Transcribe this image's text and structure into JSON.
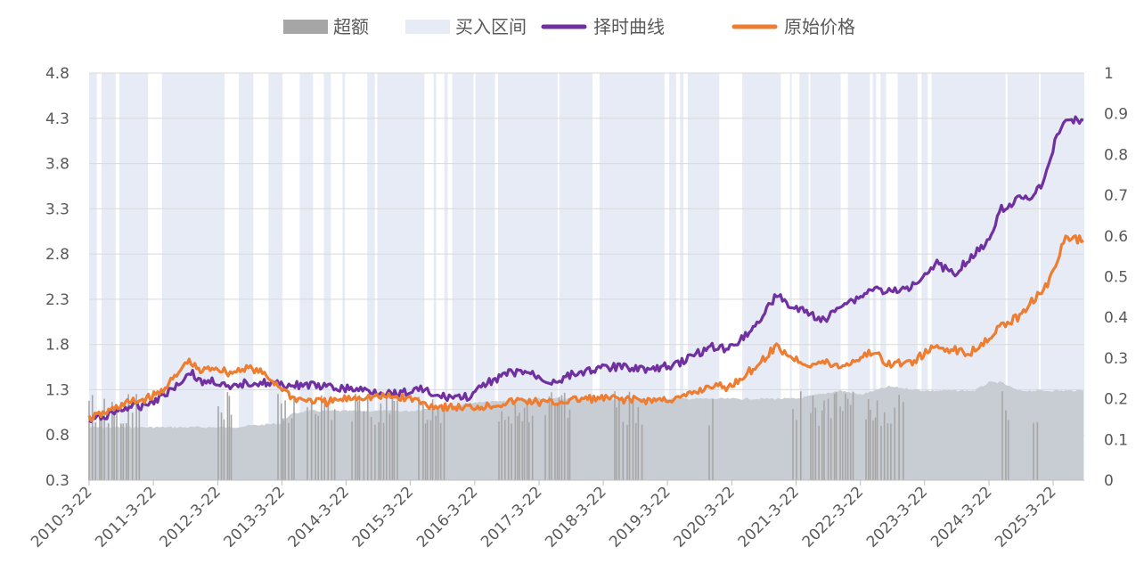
{
  "chart_data": {
    "type": "line",
    "title": "",
    "legend": {
      "position": "top",
      "entries": [
        {
          "label": "超额",
          "color": "#a6a6a6",
          "kind": "area"
        },
        {
          "label": "买入区间",
          "color": "#e6ebf6",
          "kind": "band"
        },
        {
          "label": "择时曲线",
          "color": "#7030a0",
          "kind": "line"
        },
        {
          "label": "原始价格",
          "color": "#ed7d31",
          "kind": "line"
        }
      ]
    },
    "colors": {
      "timing": "#7030a0",
      "price": "#ed7d31",
      "excess": "#a6a6a6",
      "excess_light": "#c8ccd3",
      "buy_band": "#e6ebf6",
      "grid": "#d9d9d9",
      "axis": "#bfbfbf"
    },
    "x_axis": {
      "type": "date",
      "range": [
        "2010-03-22",
        "2025-09-15"
      ],
      "tick_labels": [
        "2010-3-22",
        "2011-3-22",
        "2012-3-22",
        "2013-3-22",
        "2014-3-22",
        "2015-3-22",
        "2016-3-22",
        "2017-3-22",
        "2018-3-22",
        "2019-3-22",
        "2020-3-22",
        "2021-3-22",
        "2022-3-22",
        "2023-3-22",
        "2024-3-22",
        "2025-3-22"
      ]
    },
    "y_left": {
      "min": 0.3,
      "max": 4.8,
      "ticks": [
        0.3,
        0.8,
        1.3,
        1.8,
        2.3,
        2.8,
        3.3,
        3.8,
        4.3,
        4.8
      ],
      "tick_labels": [
        "0.3",
        "0.8",
        "1.3",
        "1.8",
        "2.3",
        "2.8",
        "3.3",
        "3.8",
        "4.3",
        "4.8"
      ]
    },
    "y_right": {
      "min": 0,
      "max": 1,
      "ticks": [
        0,
        0.1,
        0.2,
        0.3,
        0.4,
        0.5,
        0.6,
        0.7,
        0.8,
        0.9,
        1
      ],
      "tick_labels": [
        "0",
        "0.1",
        "0.2",
        "0.3",
        "0.4",
        "0.5",
        "0.6",
        "0.7",
        "0.8",
        "0.9",
        "1"
      ]
    },
    "grid": true,
    "buy_intervals": [
      [
        "2010-03-22",
        "2010-05-05"
      ],
      [
        "2010-06-01",
        "2010-08-20"
      ],
      [
        "2010-09-10",
        "2011-02-20"
      ],
      [
        "2011-05-10",
        "2012-04-30"
      ],
      [
        "2012-07-20",
        "2012-10-10"
      ],
      [
        "2013-01-05",
        "2013-03-25"
      ],
      [
        "2013-07-01",
        "2013-09-15"
      ],
      [
        "2013-11-15",
        "2013-12-25"
      ],
      [
        "2014-03-01",
        "2014-03-15"
      ],
      [
        "2014-07-20",
        "2014-09-01"
      ],
      [
        "2014-09-15",
        "2015-06-10"
      ],
      [
        "2015-08-01",
        "2015-08-15"
      ],
      [
        "2015-10-01",
        "2015-10-20"
      ],
      [
        "2015-11-15",
        "2016-03-15"
      ],
      [
        "2016-03-25",
        "2016-07-15"
      ],
      [
        "2016-08-01",
        "2017-07-05"
      ],
      [
        "2017-07-15",
        "2018-01-20"
      ],
      [
        "2018-03-01",
        "2019-03-05"
      ],
      [
        "2019-04-01",
        "2019-05-10"
      ],
      [
        "2019-06-01",
        "2019-06-20"
      ],
      [
        "2019-07-15",
        "2020-01-10"
      ],
      [
        "2020-05-20",
        "2020-12-25"
      ],
      [
        "2021-02-15",
        "2021-02-25"
      ],
      [
        "2021-04-10",
        "2021-06-01"
      ],
      [
        "2021-06-10",
        "2021-11-30"
      ],
      [
        "2022-01-10",
        "2022-05-15"
      ],
      [
        "2022-06-01",
        "2022-06-20"
      ],
      [
        "2022-07-15",
        "2022-08-15"
      ],
      [
        "2022-10-20",
        "2023-02-10"
      ],
      [
        "2023-03-05",
        "2023-04-10"
      ],
      [
        "2023-05-01",
        "2024-06-25"
      ],
      [
        "2024-07-05",
        "2024-12-31"
      ],
      [
        "2025-01-10",
        "2025-09-15"
      ]
    ],
    "series": [
      {
        "name": "择时曲线",
        "axis": "left",
        "color": "#7030a0",
        "points": [
          [
            "2010-03-22",
            0.95
          ],
          [
            "2010-07-01",
            1.02
          ],
          [
            "2010-10-15",
            1.1
          ],
          [
            "2011-01-10",
            1.12
          ],
          [
            "2011-04-15",
            1.2
          ],
          [
            "2011-08-01",
            1.35
          ],
          [
            "2011-10-20",
            1.5
          ],
          [
            "2011-12-15",
            1.38
          ],
          [
            "2012-03-01",
            1.4
          ],
          [
            "2012-06-01",
            1.3
          ],
          [
            "2012-09-01",
            1.38
          ],
          [
            "2012-12-01",
            1.38
          ],
          [
            "2013-02-01",
            1.36
          ],
          [
            "2013-05-01",
            1.35
          ],
          [
            "2013-09-01",
            1.35
          ],
          [
            "2014-01-01",
            1.32
          ],
          [
            "2014-06-01",
            1.3
          ],
          [
            "2014-12-01",
            1.26
          ],
          [
            "2015-04-01",
            1.28
          ],
          [
            "2015-06-01",
            1.32
          ],
          [
            "2015-08-01",
            1.22
          ],
          [
            "2015-12-01",
            1.22
          ],
          [
            "2016-03-01",
            1.22
          ],
          [
            "2016-06-01",
            1.38
          ],
          [
            "2016-10-01",
            1.48
          ],
          [
            "2017-01-01",
            1.5
          ],
          [
            "2017-06-01",
            1.38
          ],
          [
            "2017-09-01",
            1.45
          ],
          [
            "2018-01-01",
            1.52
          ],
          [
            "2018-06-01",
            1.55
          ],
          [
            "2018-09-01",
            1.55
          ],
          [
            "2019-01-01",
            1.52
          ],
          [
            "2019-06-01",
            1.6
          ],
          [
            "2019-12-01",
            1.78
          ],
          [
            "2020-03-01",
            1.75
          ],
          [
            "2020-08-01",
            2.0
          ],
          [
            "2020-12-01",
            2.35
          ],
          [
            "2021-03-01",
            2.2
          ],
          [
            "2021-06-01",
            2.15
          ],
          [
            "2021-09-01",
            2.05
          ],
          [
            "2021-12-01",
            2.25
          ],
          [
            "2022-03-01",
            2.3
          ],
          [
            "2022-06-01",
            2.42
          ],
          [
            "2022-09-01",
            2.38
          ],
          [
            "2022-12-01",
            2.4
          ],
          [
            "2023-03-01",
            2.55
          ],
          [
            "2023-06-01",
            2.7
          ],
          [
            "2023-09-01",
            2.58
          ],
          [
            "2023-12-01",
            2.75
          ],
          [
            "2024-03-01",
            2.9
          ],
          [
            "2024-06-01",
            3.3
          ],
          [
            "2024-09-01",
            3.4
          ],
          [
            "2024-12-01",
            3.45
          ],
          [
            "2025-02-01",
            3.6
          ],
          [
            "2025-04-01",
            4.05
          ],
          [
            "2025-06-01",
            4.3
          ],
          [
            "2025-09-10",
            4.28
          ]
        ]
      },
      {
        "name": "原始价格",
        "axis": "left",
        "color": "#ed7d31",
        "points": [
          [
            "2010-03-22",
            0.98
          ],
          [
            "2010-07-01",
            1.05
          ],
          [
            "2010-10-15",
            1.15
          ],
          [
            "2011-01-10",
            1.18
          ],
          [
            "2011-04-15",
            1.25
          ],
          [
            "2011-08-01",
            1.45
          ],
          [
            "2011-10-01",
            1.62
          ],
          [
            "2011-12-15",
            1.5
          ],
          [
            "2012-03-01",
            1.55
          ],
          [
            "2012-06-01",
            1.48
          ],
          [
            "2012-09-01",
            1.55
          ],
          [
            "2012-12-01",
            1.48
          ],
          [
            "2013-03-01",
            1.35
          ],
          [
            "2013-06-01",
            1.2
          ],
          [
            "2013-12-01",
            1.16
          ],
          [
            "2014-06-01",
            1.22
          ],
          [
            "2014-12-01",
            1.22
          ],
          [
            "2015-04-01",
            1.2
          ],
          [
            "2015-06-01",
            1.15
          ],
          [
            "2015-08-01",
            1.12
          ],
          [
            "2016-01-01",
            1.1
          ],
          [
            "2016-06-01",
            1.12
          ],
          [
            "2016-12-01",
            1.18
          ],
          [
            "2017-06-01",
            1.15
          ],
          [
            "2017-12-01",
            1.2
          ],
          [
            "2018-06-01",
            1.2
          ],
          [
            "2018-12-01",
            1.18
          ],
          [
            "2019-06-01",
            1.2
          ],
          [
            "2019-12-01",
            1.35
          ],
          [
            "2020-03-01",
            1.32
          ],
          [
            "2020-08-01",
            1.55
          ],
          [
            "2020-12-01",
            1.78
          ],
          [
            "2021-03-01",
            1.65
          ],
          [
            "2021-06-01",
            1.58
          ],
          [
            "2021-09-01",
            1.6
          ],
          [
            "2021-12-01",
            1.55
          ],
          [
            "2022-06-01",
            1.72
          ],
          [
            "2022-09-01",
            1.58
          ],
          [
            "2023-01-01",
            1.6
          ],
          [
            "2023-06-01",
            1.78
          ],
          [
            "2023-12-01",
            1.7
          ],
          [
            "2024-03-01",
            1.85
          ],
          [
            "2024-06-01",
            2.0
          ],
          [
            "2024-09-01",
            2.1
          ],
          [
            "2024-12-01",
            2.3
          ],
          [
            "2025-03-01",
            2.5
          ],
          [
            "2025-06-01",
            2.98
          ],
          [
            "2025-09-10",
            2.95
          ]
        ]
      },
      {
        "name": "超额",
        "axis": "right",
        "color": "#a6a6a6",
        "kind": "area",
        "points": [
          [
            "2010-03-22",
            0.13
          ],
          [
            "2011-01-01",
            0.13
          ],
          [
            "2011-03-22",
            0.13
          ],
          [
            "2012-03-22",
            0.13
          ],
          [
            "2012-06-01",
            0.13
          ],
          [
            "2013-03-22",
            0.14
          ],
          [
            "2013-05-01",
            0.16
          ],
          [
            "2013-08-01",
            0.17
          ],
          [
            "2014-03-22",
            0.17
          ],
          [
            "2015-03-22",
            0.17
          ],
          [
            "2015-09-01",
            0.18
          ],
          [
            "2016-03-22",
            0.19
          ],
          [
            "2017-03-22",
            0.2
          ],
          [
            "2018-03-22",
            0.2
          ],
          [
            "2019-03-22",
            0.2
          ],
          [
            "2020-03-22",
            0.2
          ],
          [
            "2021-03-22",
            0.2
          ],
          [
            "2021-12-01",
            0.22
          ],
          [
            "2022-03-22",
            0.21
          ],
          [
            "2022-09-01",
            0.23
          ],
          [
            "2023-03-22",
            0.22
          ],
          [
            "2024-01-01",
            0.22
          ],
          [
            "2024-03-22",
            0.24
          ],
          [
            "2024-06-01",
            0.24
          ],
          [
            "2024-09-01",
            0.22
          ],
          [
            "2025-03-22",
            0.22
          ],
          [
            "2025-09-10",
            0.22
          ]
        ]
      }
    ]
  }
}
